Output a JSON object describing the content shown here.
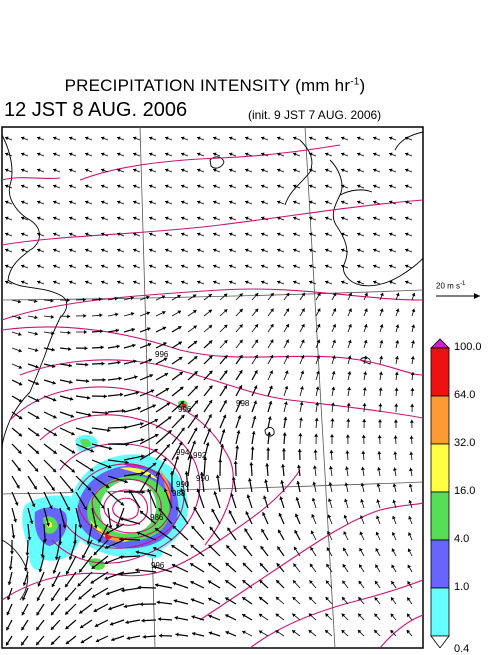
{
  "title": {
    "main": "PRECIPITATION INTENSITY (mm hr",
    "unit_exp": "-1",
    "close": ")",
    "valid_time": "12 JST 8 AUG. 2006",
    "init_time": "(init. 9 JST 7 AUG. 2006)"
  },
  "wind_scale": {
    "value": "20 m s",
    "exp": "-1"
  },
  "colorbar": {
    "labels": [
      "100.0",
      "64.0",
      "32.0",
      "16.0",
      "4.0",
      "1.0",
      "0.4"
    ],
    "colors": [
      "#cc22cc",
      "#ee1111",
      "#ff9933",
      "#ffff44",
      "#55dd55",
      "#6666ff",
      "#66ffff",
      "#ffffff"
    ]
  },
  "isobar_labels": [
    "996",
    "996",
    "992",
    "998",
    "994",
    "990",
    "988",
    "986",
    "996",
    "990"
  ],
  "map_colors": {
    "isobar": "#cc1177",
    "coast": "#000000",
    "grid": "#555555"
  }
}
